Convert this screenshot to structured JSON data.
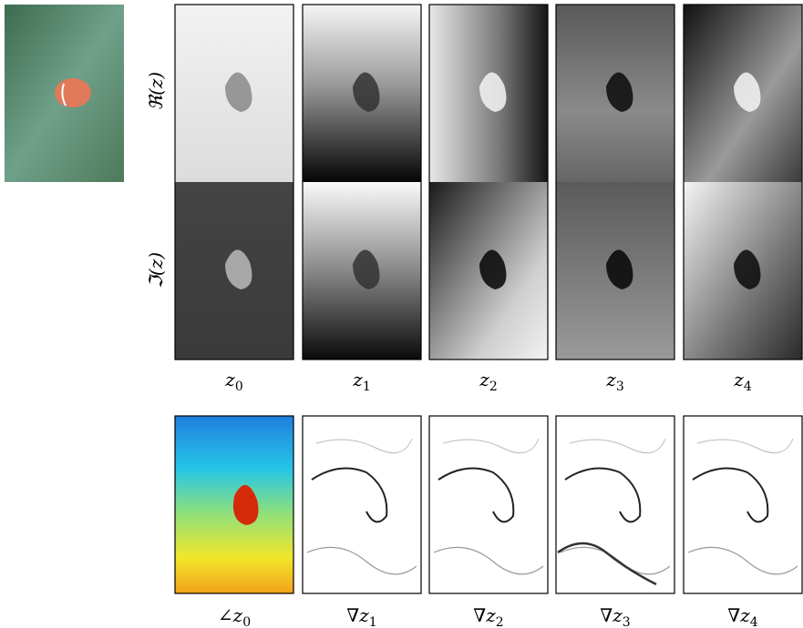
{
  "figure": {
    "row_labels": [
      "ℜ(z)",
      "ℑ(z)"
    ],
    "columns": [
      {
        "base": "z",
        "sub": "0"
      },
      {
        "base": "z",
        "sub": "1"
      },
      {
        "base": "z",
        "sub": "2"
      },
      {
        "base": "z",
        "sub": "3"
      },
      {
        "base": "z",
        "sub": "4"
      }
    ],
    "bottom_labels": [
      {
        "operator": "∠",
        "base": "z",
        "sub": "0"
      },
      {
        "operator": "∇",
        "base": "z",
        "sub": "1"
      },
      {
        "operator": "∇",
        "base": "z",
        "sub": "2"
      },
      {
        "operator": "∇",
        "base": "z",
        "sub": "3"
      },
      {
        "operator": "∇",
        "base": "z",
        "sub": "4"
      }
    ]
  }
}
